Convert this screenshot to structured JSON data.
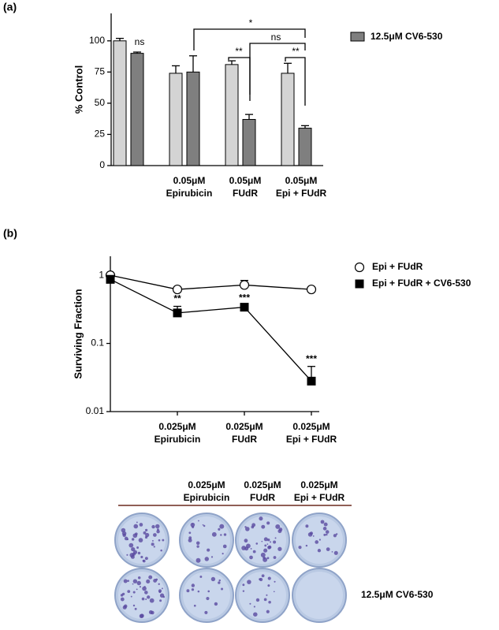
{
  "panel_labels": [
    "(a)",
    "(b)"
  ],
  "chart_data": [
    {
      "type": "bar",
      "ylabel": "% Control",
      "categories": [
        null,
        [
          "0.05μM",
          "Epirubicin"
        ],
        [
          "0.05μM",
          "FUdR"
        ],
        [
          "0.05μM",
          "Epi + FUdR"
        ]
      ],
      "series": [
        {
          "color": "#d4d4d4",
          "values": [
            100,
            74,
            81,
            74
          ],
          "errors": [
            2,
            6,
            3,
            8
          ]
        },
        {
          "name": "12.5μM CV6-530",
          "color": "#7f7f7f",
          "values": [
            90,
            75,
            37,
            30
          ],
          "errors": [
            1,
            13,
            4,
            2
          ]
        }
      ],
      "ylim": [
        0,
        122
      ],
      "yticks": [
        0,
        25,
        50,
        75,
        100
      ],
      "annotations": [
        {
          "text": "ns"
        },
        {
          "text": "*"
        },
        {
          "text": "ns"
        },
        {
          "text": "**"
        },
        {
          "text": "**"
        }
      ]
    },
    {
      "type": "line",
      "ylabel": "Surviving Fraction",
      "yscale": "log",
      "categories": [
        null,
        [
          "0.025μM",
          "Epirubicin"
        ],
        [
          "0.025μM",
          "FUdR"
        ],
        [
          "0.025μM",
          "Epi + FUdR"
        ]
      ],
      "series": [
        {
          "name": "Epi + FUdR",
          "color": "#000000",
          "marker": "open-circle",
          "values": [
            1,
            0.62,
            0.72,
            0.62
          ],
          "errors": [
            0,
            0.03,
            0.12,
            0
          ]
        },
        {
          "name": "Epi + FUdR + CV6-530",
          "color": "#000000",
          "marker": "filled-square",
          "values": [
            0.87,
            0.28,
            0.34,
            0.028
          ],
          "errors": [
            0.12,
            0.07,
            0.02,
            0.018
          ]
        }
      ],
      "ylim": [
        0.01,
        1.9
      ],
      "yticks": [
        0.01,
        0.1,
        1
      ],
      "annotations": [
        {
          "text": "**"
        },
        {
          "text": "***"
        },
        {
          "text": "***"
        }
      ]
    }
  ],
  "plate_image": {
    "column_labels": [
      [
        "0.025μM",
        "Epirubicin"
      ],
      [
        "0.025μM",
        "FUdR"
      ],
      [
        "0.025μM",
        "Epi + FUdR"
      ]
    ],
    "row_label": "12.5μM CV6-530"
  }
}
